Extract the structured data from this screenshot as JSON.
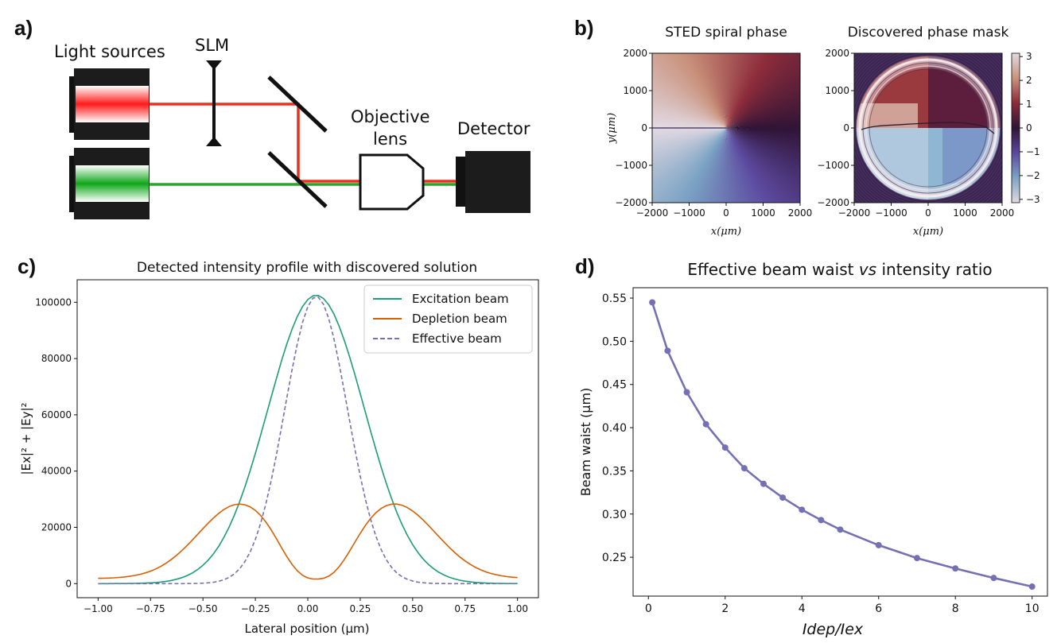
{
  "panels": {
    "a": {
      "label": "a)",
      "light_sources": "Light sources",
      "slm": "SLM",
      "objective_line1": "Objective",
      "objective_line2": "lens",
      "detector": "Detector"
    },
    "b": {
      "label": "b)"
    },
    "c": {
      "label": "c)"
    },
    "d": {
      "label": "d)"
    }
  },
  "colors": {
    "red_beam": "#e8321e",
    "green_beam": "#28a52a",
    "excitation": "#1b9e77",
    "depletion": "#d95f02",
    "effective": "#7570b3",
    "waist": "#7570b3"
  },
  "chart_data": [
    {
      "panel": "b-left",
      "type": "heatmap",
      "title": "STED spiral phase",
      "xlabel": "x(μm)",
      "ylabel": "y(μm)",
      "xlim": [
        -2000,
        2000
      ],
      "ylim": [
        -2000,
        2000
      ],
      "xticks": [
        "−2000",
        "−1000",
        "0",
        "1000",
        "2000"
      ],
      "yticks": [
        "2000",
        "1000",
        "0",
        "−1000",
        "−2000"
      ],
      "description": "phase = atan2(y, x), twilight_shifted colormap"
    },
    {
      "panel": "b-right",
      "type": "heatmap",
      "title": "Discovered phase mask",
      "xlabel": "x(μm)",
      "xlim": [
        -2000,
        2000
      ],
      "ylim": [
        -2000,
        2000
      ],
      "xticks": [
        "−2000",
        "−1000",
        "0",
        "1000",
        "2000"
      ],
      "yticks": [
        "2000",
        "1000",
        "0",
        "−1000",
        "−2000"
      ],
      "colorbar_ticks": [
        "3",
        "2",
        "1",
        "0",
        "−1",
        "−2",
        "−3"
      ],
      "colorbar_range": [
        -3.14,
        3.14
      ]
    },
    {
      "panel": "c",
      "type": "line",
      "title": "Detected intensity profile with discovered solution",
      "xlabel": "Lateral position (μm)",
      "ylabel": "|Ex|² + |Ey|²",
      "xlim": [
        -1.0,
        1.0
      ],
      "ylim": [
        0,
        108000
      ],
      "xticks": [
        "−1.00",
        "−0.75",
        "−0.50",
        "−0.25",
        "0.00",
        "0.25",
        "0.50",
        "0.75",
        "1.00"
      ],
      "yticks": [
        "0",
        "20000",
        "40000",
        "60000",
        "80000",
        "100000"
      ],
      "legend_position": "top-right",
      "series": [
        {
          "name": "Excitation beam",
          "style": "solid",
          "peak_x": 0.04,
          "peak": 102500,
          "sigma": 0.23
        },
        {
          "name": "Depletion beam",
          "style": "solid",
          "peaks_x": [
            -0.32,
            0.41
          ],
          "peak": 28400,
          "center_min": 800,
          "edge_value": 2000
        },
        {
          "name": "Effective beam",
          "style": "dashed",
          "peak_x": 0.04,
          "peak": 102000,
          "sigma": 0.15
        }
      ]
    },
    {
      "panel": "d",
      "type": "line",
      "title_main": "Effective beam waist ",
      "title_italic": "vs",
      "title_end": " intensity ratio",
      "xlabel": "Idep/Iex",
      "ylabel": "Beam waist (μm)",
      "xlim": [
        -0.4,
        10.4
      ],
      "ylim": [
        0.205,
        0.562
      ],
      "xticks": [
        "0",
        "2",
        "4",
        "6",
        "8",
        "10"
      ],
      "yticks": [
        "0.25",
        "0.30",
        "0.35",
        "0.40",
        "0.45",
        "0.50",
        "0.55"
      ],
      "x": [
        0.1,
        0.5,
        1.0,
        1.5,
        2.0,
        2.5,
        3.0,
        3.5,
        4.0,
        4.5,
        5.0,
        6.0,
        7.0,
        8.0,
        9.0,
        10.0
      ],
      "y": [
        0.545,
        0.489,
        0.441,
        0.404,
        0.377,
        0.353,
        0.335,
        0.319,
        0.305,
        0.293,
        0.282,
        0.264,
        0.249,
        0.237,
        0.226,
        0.216
      ]
    }
  ]
}
